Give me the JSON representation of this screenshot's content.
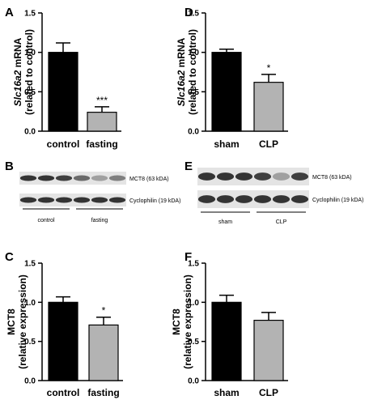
{
  "panels": {
    "A": "A",
    "B": "B",
    "C": "C",
    "D": "D",
    "E": "E",
    "F": "F"
  },
  "chart_data": [
    {
      "id": "A",
      "type": "bar",
      "categories": [
        "control",
        "fasting"
      ],
      "values": [
        1.0,
        0.24
      ],
      "errors": [
        0.12,
        0.07
      ],
      "colors": [
        "#000000",
        "#b3b3b3"
      ],
      "ylabel_lines": [
        [
          "Slc16a2",
          " mRNA"
        ],
        [
          "(related to control)"
        ]
      ],
      "ylim": [
        0,
        1.5
      ],
      "yticks": [
        "0.0",
        "0.5",
        "1.0",
        "1.5"
      ],
      "annotations": [
        "",
        "***"
      ]
    },
    {
      "id": "D",
      "type": "bar",
      "categories": [
        "sham",
        "CLP"
      ],
      "values": [
        1.0,
        0.62
      ],
      "errors": [
        0.04,
        0.1
      ],
      "colors": [
        "#000000",
        "#b3b3b3"
      ],
      "ylabel_lines": [
        [
          "Slc16a2",
          " mRNA"
        ],
        [
          "(related to control)"
        ]
      ],
      "ylim": [
        0,
        1.5
      ],
      "yticks": [
        "0.0",
        "0.5",
        "1.0",
        "1.5"
      ],
      "annotations": [
        "",
        "*"
      ]
    },
    {
      "id": "C",
      "type": "bar",
      "categories": [
        "control",
        "fasting"
      ],
      "values": [
        1.0,
        0.71
      ],
      "errors": [
        0.07,
        0.1
      ],
      "colors": [
        "#000000",
        "#b3b3b3"
      ],
      "ylabel_lines": [
        [
          "MCT8"
        ],
        [
          "(relative expression)"
        ]
      ],
      "ylim": [
        0,
        1.5
      ],
      "yticks": [
        "0.0",
        "0.5",
        "1.0",
        "1.5"
      ],
      "annotations": [
        "",
        "*"
      ]
    },
    {
      "id": "F",
      "type": "bar",
      "categories": [
        "sham",
        "CLP"
      ],
      "values": [
        1.0,
        0.77
      ],
      "errors": [
        0.09,
        0.1
      ],
      "colors": [
        "#000000",
        "#b3b3b3"
      ],
      "ylabel_lines": [
        [
          "MCT8"
        ],
        [
          "(relative expression)"
        ]
      ],
      "ylim": [
        0,
        1.5
      ],
      "yticks": [
        "0.0",
        "0.5",
        "1.0",
        "1.5"
      ],
      "annotations": [
        "",
        ""
      ]
    }
  ],
  "blots": {
    "B": {
      "band_labels": [
        "MCT8 (63 kDA)",
        "Cyclophilin (19 kDA)"
      ],
      "groups": [
        "control",
        "fasting"
      ],
      "mct8_intensity": [
        0.85,
        0.85,
        0.8,
        0.6,
        0.35,
        0.5
      ],
      "cyclo_intensity": [
        0.85,
        0.85,
        0.85,
        0.85,
        0.85,
        0.85
      ]
    },
    "E": {
      "band_labels": [
        "MCT8 (63 kDA)",
        "Cyclophilin (19 kDA)"
      ],
      "groups": [
        "sham",
        "CLP"
      ],
      "mct8_intensity": [
        0.85,
        0.85,
        0.85,
        0.8,
        0.35,
        0.8
      ],
      "cyclo_intensity": [
        0.85,
        0.85,
        0.85,
        0.85,
        0.85,
        0.85
      ]
    }
  }
}
